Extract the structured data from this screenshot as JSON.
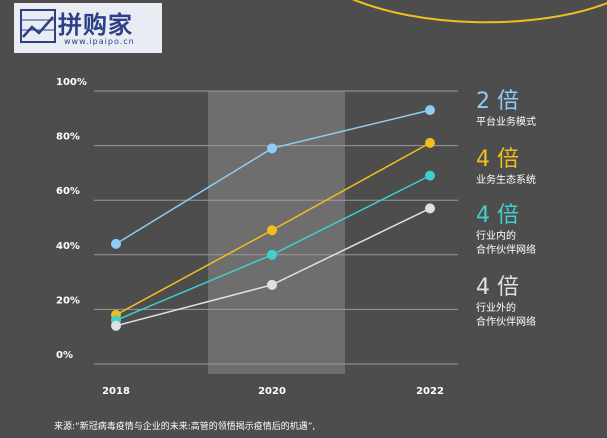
{
  "logo": {
    "name": "拼购家",
    "url": "www.ipaipo.cn"
  },
  "chart_data": {
    "type": "line",
    "x": [
      "2018",
      "2020",
      "2022"
    ],
    "ylim": [
      0,
      100
    ],
    "yticks": [
      "0%",
      "20%",
      "40%",
      "60%",
      "80%",
      "100%"
    ],
    "ytick_values": [
      0,
      20,
      40,
      60,
      80,
      100
    ],
    "grid": true,
    "highlight_category": "2020",
    "series": [
      {
        "name": "平台业务模式",
        "color": "#8ecdf5",
        "values": [
          44,
          79,
          93
        ]
      },
      {
        "name": "业务生态系统",
        "color": "#f2be1c",
        "values": [
          18,
          49,
          81
        ]
      },
      {
        "name": "行业内的合作伙伴网络",
        "color": "#3fcfcf",
        "values": [
          16,
          40,
          69
        ]
      },
      {
        "name": "行业外的合作伙伴网络",
        "color": "#e0e0e0",
        "values": [
          14,
          29,
          57
        ]
      }
    ],
    "annotations": [
      {
        "multiple": "2 倍",
        "label_lines": [
          "平台业务模式"
        ],
        "color": "#8ecdf5"
      },
      {
        "multiple": "4 倍",
        "label_lines": [
          "业务生态系统"
        ],
        "color": "#f2be1c"
      },
      {
        "multiple": "4 倍",
        "label_lines": [
          "行业内的",
          "合作伙伴网络"
        ],
        "color": "#3fcfcf"
      },
      {
        "multiple": "4 倍",
        "label_lines": [
          "行业外的",
          "合作伙伴网络"
        ],
        "color": "#e0e0e0"
      }
    ]
  },
  "source_text": "来源:“新冠病毒疫情与企业的未来:高管的领悟揭示疫情后的机遇”,"
}
